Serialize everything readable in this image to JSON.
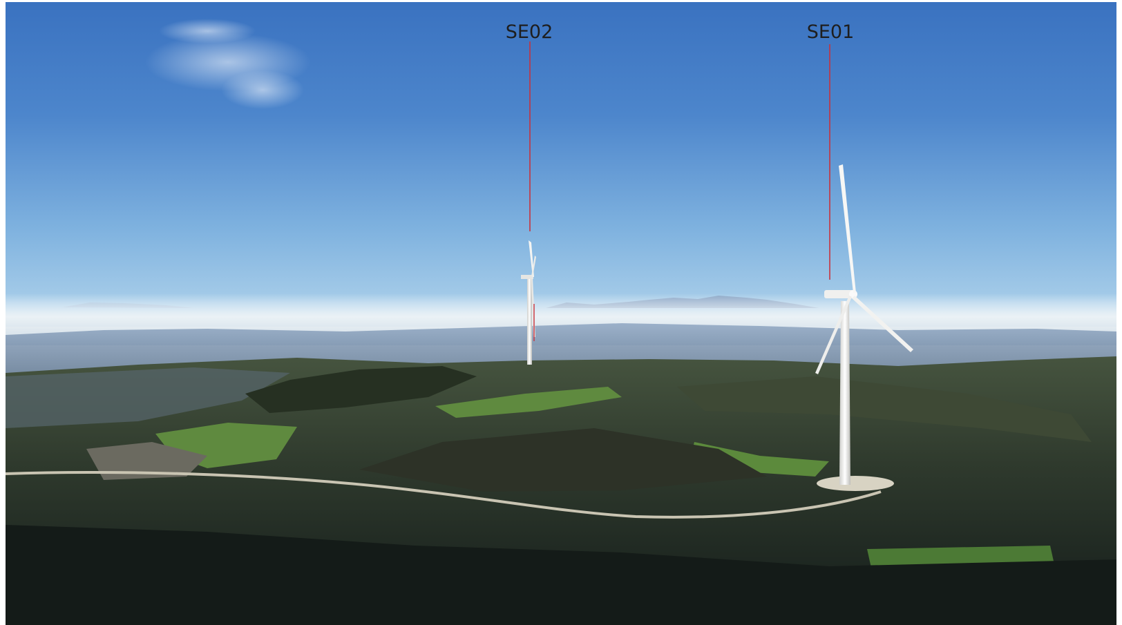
{
  "image": {
    "kind": "photo-montage",
    "subject": "wind-turbine-visual-simulation",
    "colors": {
      "marker_line": "#c8323c",
      "label_text": "#1e1e1e",
      "sky_top": "#3f78c4",
      "sky_horizon": "#a9cfe8",
      "fog": "#e6edf2",
      "turbine": "#f2f2f0"
    }
  },
  "turbines": [
    {
      "id": "SE02",
      "label": "SE02"
    },
    {
      "id": "SE01",
      "label": "SE01"
    }
  ]
}
